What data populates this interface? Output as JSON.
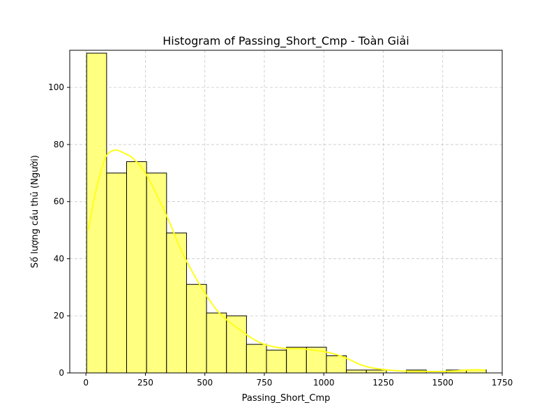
{
  "chart_data": {
    "type": "bar",
    "subtype": "histogram",
    "title": "Histogram of Passing_Short_Cmp - Toàn Giải",
    "xlabel": "Passing_Short_Cmp",
    "ylabel": "Số lượng cầu thủ (Người)",
    "xlim": [
      -68,
      1750
    ],
    "ylim": [
      0,
      113
    ],
    "xticks": [
      0,
      250,
      500,
      750,
      1000,
      1250,
      1500,
      1750
    ],
    "yticks": [
      0,
      20,
      40,
      60,
      80,
      100
    ],
    "grid": true,
    "bin_edges": [
      3,
      87,
      171,
      255,
      339,
      423,
      507,
      591,
      675,
      759,
      843,
      927,
      1011,
      1095,
      1179,
      1263,
      1347,
      1431,
      1515,
      1599,
      1683
    ],
    "counts": [
      112,
      70,
      74,
      70,
      49,
      31,
      21,
      20,
      10,
      8,
      9,
      9,
      6,
      1,
      1,
      0,
      1,
      0,
      1,
      1
    ],
    "kde": {
      "x": [
        10,
        40,
        80,
        120,
        160,
        200,
        250,
        300,
        350,
        400,
        450,
        500,
        550,
        600,
        650,
        700,
        750,
        800,
        850,
        900,
        950,
        1000,
        1050,
        1100,
        1150,
        1200,
        1250,
        1300,
        1350,
        1400,
        1450,
        1500,
        1550,
        1600,
        1650,
        1680
      ],
      "y": [
        50,
        63,
        75,
        78,
        77,
        75,
        70,
        62,
        53,
        43,
        35,
        28,
        22,
        18,
        15,
        12,
        10,
        9,
        8.5,
        8.5,
        8,
        7.5,
        6.5,
        5,
        3,
        1.8,
        1.2,
        0.8,
        0.6,
        0.6,
        0.5,
        0.5,
        0.7,
        1,
        1.1,
        1
      ]
    },
    "colors": {
      "bar_fill": "#ffff80",
      "kde_line": "#ffff1a"
    }
  }
}
